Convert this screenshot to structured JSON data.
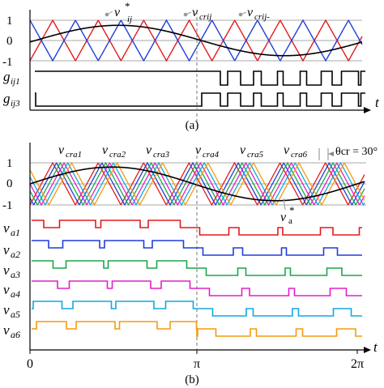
{
  "colors": {
    "axis": "#000000",
    "grid": "#aaaaaa",
    "sine": "#000000",
    "carrier_pos": "#e41a1c",
    "carrier_neg": "#1f3fd8",
    "phase": [
      "#e41a1c",
      "#1f3fd8",
      "#1aa84a",
      "#e020c8",
      "#10a8e0",
      "#f59a10"
    ]
  },
  "panel_a": {
    "caption": "(a)",
    "y_ticks": [
      "1",
      "0",
      "-1"
    ],
    "time_axis_label": "t",
    "reference_label": {
      "symbol": "v",
      "superscript": "*",
      "subscript": "ij"
    },
    "carrier_labels": [
      {
        "symbol": "v",
        "subscript": "crij"
      },
      {
        "symbol": "v",
        "subscript": "crij-"
      }
    ],
    "gate_signals": [
      {
        "symbol": "g",
        "subscript": "ij1"
      },
      {
        "symbol": "g",
        "subscript": "ij3"
      }
    ]
  },
  "panel_b": {
    "caption": "(b)",
    "y_ticks": [
      "1",
      "0",
      "-1"
    ],
    "time_axis_label": "t",
    "x_ticks": [
      "0",
      "π",
      "2π"
    ],
    "carrier_labels": [
      {
        "symbol": "v",
        "subscript": "cra1"
      },
      {
        "symbol": "v",
        "subscript": "cra2"
      },
      {
        "symbol": "v",
        "subscript": "cra3"
      },
      {
        "symbol": "v",
        "subscript": "cra4"
      },
      {
        "symbol": "v",
        "subscript": "cra5"
      },
      {
        "symbol": "v",
        "subscript": "cra6"
      }
    ],
    "phase_shift_label": "θcr = 30°",
    "reference_label": {
      "symbol": "v",
      "superscript": "*",
      "subscript": "a"
    },
    "output_signals": [
      {
        "symbol": "v",
        "subscript": "a1"
      },
      {
        "symbol": "v",
        "subscript": "a2"
      },
      {
        "symbol": "v",
        "subscript": "a3"
      },
      {
        "symbol": "v",
        "subscript": "a4"
      },
      {
        "symbol": "v",
        "subscript": "a5"
      },
      {
        "symbol": "v",
        "subscript": "a6"
      }
    ]
  }
}
